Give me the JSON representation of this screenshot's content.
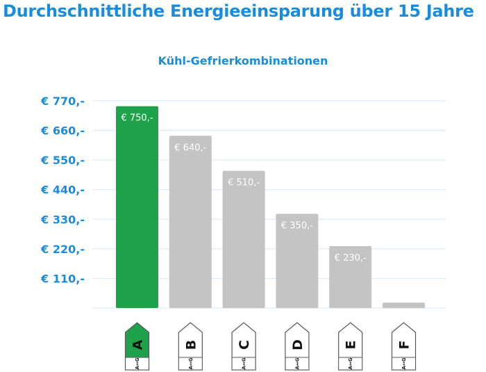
{
  "chart_data": {
    "type": "bar",
    "title": "Durchschnittliche Energieeinsparung über 15 Jahre",
    "subtitle": "Kühl-Gefrierkombinationen",
    "categories": [
      "A",
      "B",
      "C",
      "D",
      "E",
      "F"
    ],
    "values": [
      750,
      640,
      510,
      350,
      230,
      20
    ],
    "value_labels": [
      "€ 750,-",
      "€ 640,-",
      "€ 510,-",
      "€ 350,-",
      "€ 230,-",
      ""
    ],
    "y_ticks": [
      110,
      220,
      330,
      440,
      550,
      660,
      770
    ],
    "y_tick_labels": [
      "€ 110,-",
      "€ 220,-",
      "€ 330,-",
      "€ 440,-",
      "€ 550,-",
      "€ 660,-",
      "€ 770,-"
    ],
    "ylim": [
      0,
      770
    ],
    "grid": true,
    "highlight_index": 0,
    "tag_scale_text": "A↔G",
    "xlabel": "",
    "ylabel": ""
  },
  "colors": {
    "title": "#1a8cdc",
    "highlight": "#1fa34a",
    "bar": "#c4c4c4",
    "grid": "#d6e6f3",
    "tag_active_fill": "#1fa34a",
    "tag_inactive_fill": "#ffffff",
    "tag_border": "#555555"
  }
}
